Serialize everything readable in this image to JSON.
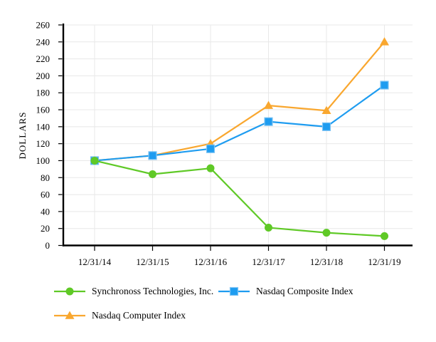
{
  "chart_data": {
    "type": "line",
    "title": "",
    "xlabel": "",
    "ylabel": "DOLLARS",
    "categories": [
      "12/31/14",
      "12/31/15",
      "12/31/16",
      "12/31/17",
      "12/31/18",
      "12/31/19"
    ],
    "series": [
      {
        "name": "Synchronoss Technologies, Inc.",
        "marker": "circle",
        "color": "#5FC926",
        "values": [
          100,
          84,
          91,
          21,
          15,
          11
        ]
      },
      {
        "name": "Nasdaq Composite Index",
        "marker": "square",
        "color": "#1E9CF0",
        "values": [
          100,
          106,
          114,
          146,
          140,
          189
        ]
      },
      {
        "name": "Nasdaq Computer Index",
        "marker": "triangle",
        "color": "#F9A72F",
        "values": [
          100,
          106,
          120,
          165,
          159,
          240
        ]
      }
    ],
    "ylim": [
      0,
      260
    ],
    "yticks": [
      0,
      20,
      40,
      60,
      80,
      100,
      120,
      140,
      160,
      180,
      200,
      220,
      240,
      260
    ],
    "grid": true,
    "gridline_color": "#E8E8E8",
    "axis_color": "#000000",
    "legend_position": "bottom"
  }
}
